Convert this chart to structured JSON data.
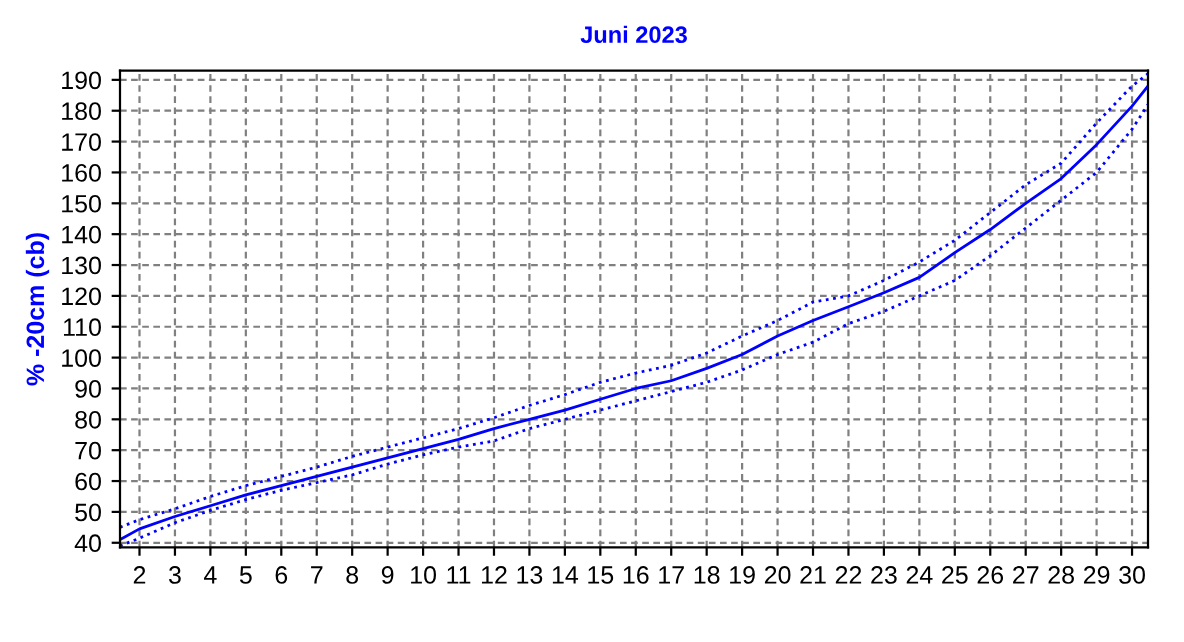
{
  "chart_data": {
    "type": "line",
    "title": "Juni 2023",
    "ylabel": "% -20cm (cb)",
    "x": [
      1.45,
      2,
      3,
      4,
      5,
      6,
      7,
      8,
      9,
      10,
      11,
      12,
      13,
      14,
      15,
      16,
      17,
      18,
      19,
      20,
      21,
      22,
      23,
      24,
      25,
      26,
      27,
      28,
      29,
      30,
      30.45
    ],
    "series": [
      {
        "color": "#0000ff",
        "line_style": "solid",
        "values": [
          41,
          44.5,
          48.5,
          52,
          55.5,
          58.5,
          61.5,
          64.5,
          67.5,
          70.5,
          73.5,
          77,
          80,
          83,
          86.5,
          90,
          92.5,
          96.5,
          101,
          107,
          112,
          116.5,
          121,
          126,
          134,
          141.5,
          150,
          158,
          169,
          181.5,
          188
        ]
      },
      {
        "color": "#0000ff",
        "line_style": "dotted",
        "values": [
          45,
          47.5,
          51,
          55,
          58.5,
          61.5,
          64.5,
          68,
          71,
          74,
          77,
          80.5,
          84.5,
          88,
          92,
          95,
          97.5,
          101.5,
          107,
          112,
          118,
          120,
          125,
          131,
          138,
          147,
          156,
          163,
          176,
          188,
          192
        ]
      },
      {
        "color": "#0000ff",
        "line_style": "dotted",
        "values": [
          39,
          41.5,
          46.5,
          50.5,
          54,
          57,
          59.5,
          62,
          65.5,
          68.5,
          71,
          73,
          77,
          80,
          83,
          86,
          89,
          92,
          96,
          101,
          105,
          111,
          115,
          120,
          125,
          133,
          142,
          151,
          160,
          174,
          182
        ]
      }
    ],
    "xlim": [
      1.45,
      30.45
    ],
    "xticks": [
      2,
      3,
      4,
      5,
      6,
      7,
      8,
      9,
      10,
      11,
      12,
      13,
      14,
      15,
      16,
      17,
      18,
      19,
      20,
      21,
      22,
      23,
      24,
      25,
      26,
      27,
      28,
      29,
      30
    ],
    "ylim": [
      38.5,
      193
    ],
    "yticks": [
      40,
      50,
      60,
      70,
      80,
      90,
      100,
      110,
      120,
      130,
      140,
      150,
      160,
      170,
      180,
      190
    ],
    "grid": true,
    "legend": false,
    "marker": "none"
  }
}
